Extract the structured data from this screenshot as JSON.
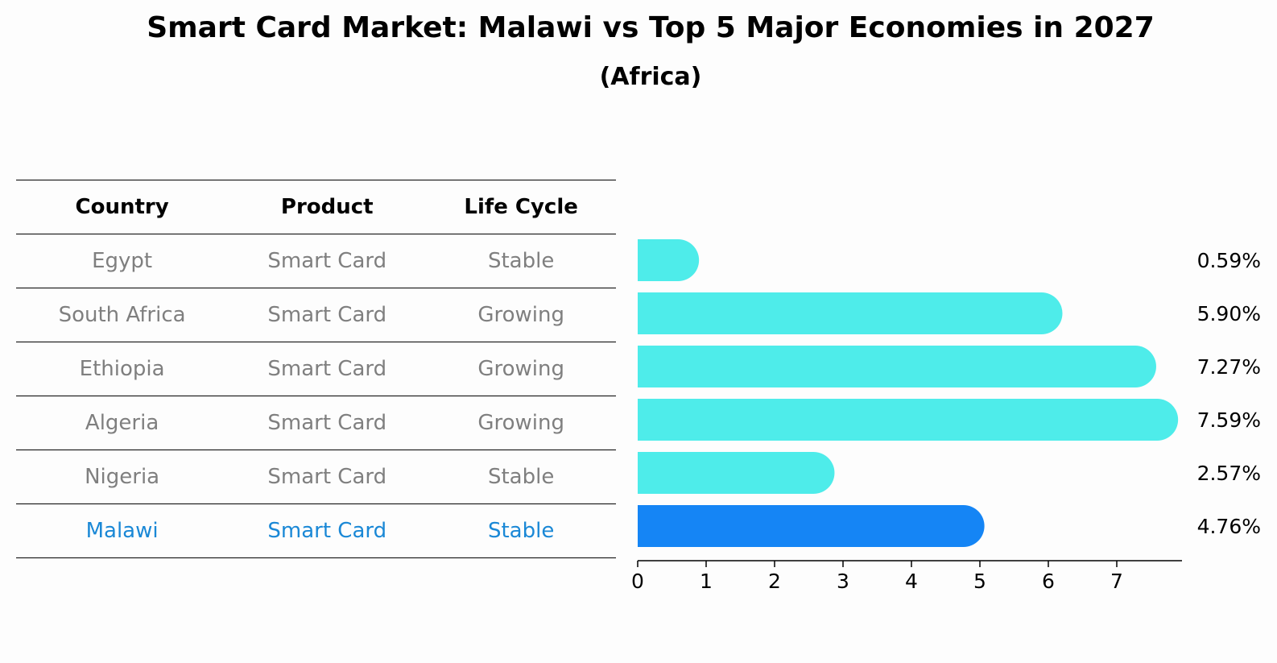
{
  "title": "Smart Card Market: Malawi vs Top 5 Major Economies in 2027",
  "subtitle": "(Africa)",
  "table": {
    "headers": [
      "Country",
      "Product",
      "Life Cycle"
    ],
    "rows": [
      {
        "country": "Egypt",
        "product": "Smart Card",
        "life_cycle": "Stable"
      },
      {
        "country": "South Africa",
        "product": "Smart Card",
        "life_cycle": "Growing"
      },
      {
        "country": "Ethiopia",
        "product": "Smart Card",
        "life_cycle": "Growing"
      },
      {
        "country": "Algeria",
        "product": "Smart Card",
        "life_cycle": "Growing"
      },
      {
        "country": "Nigeria",
        "product": "Smart Card",
        "life_cycle": "Stable"
      },
      {
        "country": "Malawi",
        "product": "Smart Card",
        "life_cycle": "Stable"
      }
    ]
  },
  "colors": {
    "bar": "#4eecea",
    "highlight_bar": "#1585f5",
    "highlight_text": "#1a88d6",
    "row_text": "#7f7f7f"
  },
  "chart_data": {
    "type": "bar",
    "orientation": "horizontal",
    "categories": [
      "Egypt",
      "South Africa",
      "Ethiopia",
      "Algeria",
      "Nigeria",
      "Malawi"
    ],
    "values": [
      0.59,
      5.9,
      7.27,
      7.59,
      2.57,
      4.76
    ],
    "labels": [
      "0.59%",
      "5.90%",
      "7.27%",
      "7.59%",
      "2.57%",
      "4.76%"
    ],
    "highlight": "Malawi",
    "xticks": [
      "0",
      "1",
      "2",
      "3",
      "4",
      "5",
      "6",
      "7"
    ],
    "xlim": [
      0,
      8
    ],
    "title": "Smart Card Market: Malawi vs Top 5 Major Economies in 2027",
    "xlabel": "",
    "ylabel": ""
  }
}
